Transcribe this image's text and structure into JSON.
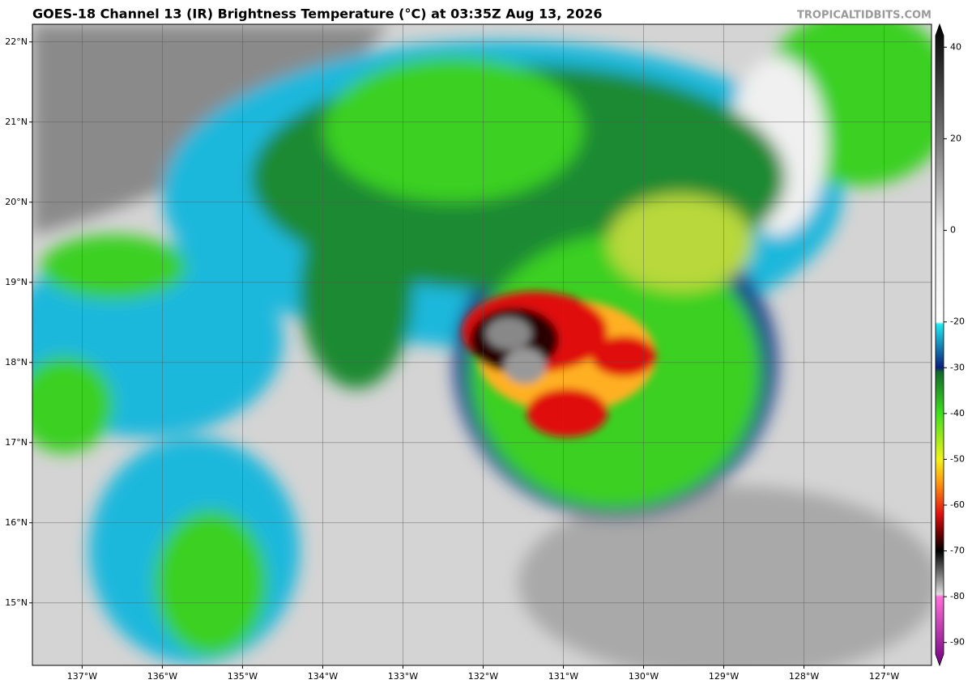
{
  "title": "GOES-18 Channel 13 (IR) Brightness Temperature (°C) at 03:35Z Aug 13, 2026",
  "watermark": "TROPICALTIDBITS.COM",
  "map": {
    "xlim": [
      -137.62,
      -126.41
    ],
    "ylim": [
      14.22,
      22.22
    ],
    "xticks": [
      {
        "value": -137,
        "label": "137°W"
      },
      {
        "value": -136,
        "label": "136°W"
      },
      {
        "value": -135,
        "label": "135°W"
      },
      {
        "value": -134,
        "label": "134°W"
      },
      {
        "value": -133,
        "label": "133°W"
      },
      {
        "value": -132,
        "label": "132°W"
      },
      {
        "value": -131,
        "label": "131°W"
      },
      {
        "value": -130,
        "label": "130°W"
      },
      {
        "value": -129,
        "label": "129°W"
      },
      {
        "value": -128,
        "label": "128°W"
      },
      {
        "value": -127,
        "label": "127°W"
      }
    ],
    "yticks": [
      {
        "value": 15,
        "label": "15°N"
      },
      {
        "value": 16,
        "label": "16°N"
      },
      {
        "value": 17,
        "label": "17°N"
      },
      {
        "value": 18,
        "label": "18°N"
      },
      {
        "value": 19,
        "label": "19°N"
      },
      {
        "value": 20,
        "label": "20°N"
      },
      {
        "value": 21,
        "label": "21°N"
      },
      {
        "value": 22,
        "label": "22°N"
      }
    ],
    "grid": true
  },
  "colorbar": {
    "range": [
      -95,
      45
    ],
    "ticks": [
      40,
      20,
      0,
      -20,
      -30,
      -40,
      -50,
      -60,
      -70,
      -80,
      -90
    ],
    "colormap": [
      {
        "value": 45,
        "color": "#000000"
      },
      {
        "value": 20,
        "color": "#777777"
      },
      {
        "value": 0,
        "color": "#e8e8e8"
      },
      {
        "value": -20,
        "color": "#ffffff"
      },
      {
        "value": -20.5,
        "color": "#22e8f0"
      },
      {
        "value": -30,
        "color": "#0a1f7a"
      },
      {
        "value": -31,
        "color": "#126b2a"
      },
      {
        "value": -40,
        "color": "#3ee01f"
      },
      {
        "value": -50,
        "color": "#f2f21a"
      },
      {
        "value": -55,
        "color": "#ff9a10"
      },
      {
        "value": -62,
        "color": "#e01010"
      },
      {
        "value": -66,
        "color": "#700000"
      },
      {
        "value": -70,
        "color": "#000000"
      },
      {
        "value": -79.5,
        "color": "#dddddd"
      },
      {
        "value": -80,
        "color": "#ff70d8"
      },
      {
        "value": -95,
        "color": "#700080"
      }
    ]
  }
}
